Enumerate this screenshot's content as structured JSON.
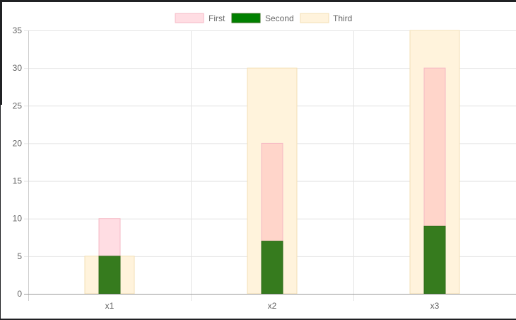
{
  "chart_data": {
    "type": "bar",
    "categories": [
      "x1",
      "x2",
      "x3"
    ],
    "series": [
      {
        "name": "First",
        "values": [
          10,
          20,
          30
        ],
        "fill": "#ffdde3",
        "stroke": "#f5b8c4"
      },
      {
        "name": "Second",
        "values": [
          5,
          7,
          9
        ],
        "fill": "#367b1e",
        "stroke": "#2e6b19",
        "legend_fill": "#008000"
      },
      {
        "name": "Third",
        "values": [
          5,
          30,
          35
        ],
        "fill": "#fff3dc",
        "stroke": "#f3dfb4"
      }
    ],
    "overlay_color": "#ffd5ca",
    "ylim": [
      0,
      35
    ],
    "yticks": [
      0,
      5,
      10,
      15,
      20,
      25,
      30,
      35
    ],
    "grid": true,
    "legend_position": "top",
    "title": "",
    "xlabel": "",
    "ylabel": ""
  }
}
